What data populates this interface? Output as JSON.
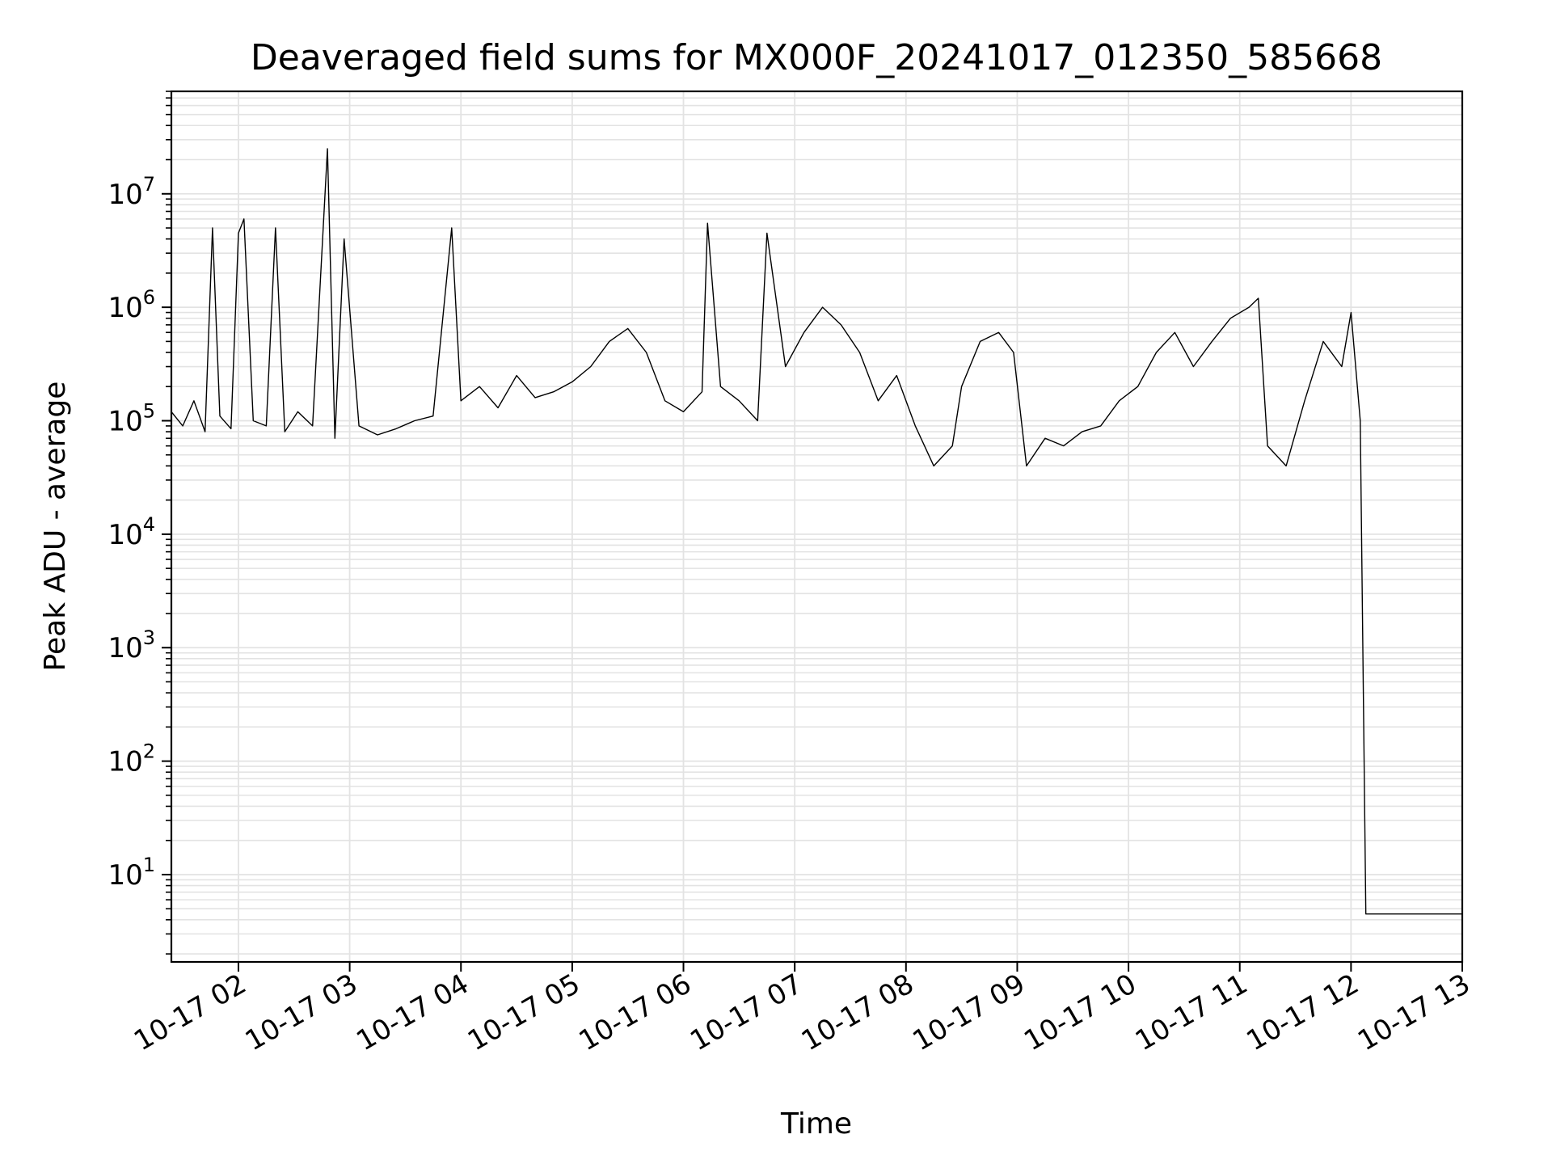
{
  "chart_data": {
    "type": "line",
    "title": "Deaveraged field sums for MX000F_20241017_012350_585668",
    "xlabel": "Time",
    "ylabel": "Peak ADU - average",
    "y_scale": "log",
    "ylim": [
      1.7,
      80000000
    ],
    "xlim": [
      "2024-10-17 01:23:50",
      "2024-10-17 13:00:00"
    ],
    "x_ticks": [
      "10-17 02",
      "10-17 03",
      "10-17 04",
      "10-17 05",
      "10-17 06",
      "10-17 07",
      "10-17 08",
      "10-17 09",
      "10-17 10",
      "10-17 11",
      "10-17 12",
      "10-17 13"
    ],
    "y_ticks": [
      {
        "base": "10",
        "exp": "1"
      },
      {
        "base": "10",
        "exp": "2"
      },
      {
        "base": "10",
        "exp": "3"
      },
      {
        "base": "10",
        "exp": "4"
      },
      {
        "base": "10",
        "exp": "5"
      },
      {
        "base": "10",
        "exp": "6"
      },
      {
        "base": "10",
        "exp": "7"
      }
    ],
    "grid": true,
    "line_color": "#000000",
    "grid_color": "#e3e3e3",
    "series": [
      {
        "name": "",
        "points": [
          [
            "2024-10-17 01:23:50",
            120000
          ],
          [
            "2024-10-17 01:30:00",
            90000
          ],
          [
            "2024-10-17 01:36:00",
            150000
          ],
          [
            "2024-10-17 01:42:00",
            80000
          ],
          [
            "2024-10-17 01:46:00",
            5000000
          ],
          [
            "2024-10-17 01:50:00",
            110000
          ],
          [
            "2024-10-17 01:56:00",
            85000
          ],
          [
            "2024-10-17 02:00:00",
            4500000
          ],
          [
            "2024-10-17 02:03:00",
            6000000
          ],
          [
            "2024-10-17 02:08:00",
            100000
          ],
          [
            "2024-10-17 02:15:00",
            90000
          ],
          [
            "2024-10-17 02:20:00",
            5000000
          ],
          [
            "2024-10-17 02:25:00",
            80000
          ],
          [
            "2024-10-17 02:32:00",
            120000
          ],
          [
            "2024-10-17 02:40:00",
            90000
          ],
          [
            "2024-10-17 02:48:00",
            25000000
          ],
          [
            "2024-10-17 02:52:00",
            70000
          ],
          [
            "2024-10-17 02:57:00",
            4000000
          ],
          [
            "2024-10-17 03:05:00",
            90000
          ],
          [
            "2024-10-17 03:15:00",
            75000
          ],
          [
            "2024-10-17 03:25:00",
            85000
          ],
          [
            "2024-10-17 03:35:00",
            100000
          ],
          [
            "2024-10-17 03:45:00",
            110000
          ],
          [
            "2024-10-17 03:55:00",
            5000000
          ],
          [
            "2024-10-17 04:00:00",
            150000
          ],
          [
            "2024-10-17 04:10:00",
            200000
          ],
          [
            "2024-10-17 04:20:00",
            130000
          ],
          [
            "2024-10-17 04:30:00",
            250000
          ],
          [
            "2024-10-17 04:40:00",
            160000
          ],
          [
            "2024-10-17 04:50:00",
            180000
          ],
          [
            "2024-10-17 05:00:00",
            220000
          ],
          [
            "2024-10-17 05:10:00",
            300000
          ],
          [
            "2024-10-17 05:20:00",
            500000
          ],
          [
            "2024-10-17 05:30:00",
            650000
          ],
          [
            "2024-10-17 05:40:00",
            400000
          ],
          [
            "2024-10-17 05:50:00",
            150000
          ],
          [
            "2024-10-17 06:00:00",
            120000
          ],
          [
            "2024-10-17 06:10:00",
            180000
          ],
          [
            "2024-10-17 06:13:00",
            5500000
          ],
          [
            "2024-10-17 06:20:00",
            200000
          ],
          [
            "2024-10-17 06:30:00",
            150000
          ],
          [
            "2024-10-17 06:40:00",
            100000
          ],
          [
            "2024-10-17 06:45:00",
            4500000
          ],
          [
            "2024-10-17 06:55:00",
            300000
          ],
          [
            "2024-10-17 07:05:00",
            600000
          ],
          [
            "2024-10-17 07:15:00",
            1000000
          ],
          [
            "2024-10-17 07:25:00",
            700000
          ],
          [
            "2024-10-17 07:35:00",
            400000
          ],
          [
            "2024-10-17 07:45:00",
            150000
          ],
          [
            "2024-10-17 07:55:00",
            250000
          ],
          [
            "2024-10-17 08:05:00",
            90000
          ],
          [
            "2024-10-17 08:15:00",
            40000
          ],
          [
            "2024-10-17 08:25:00",
            60000
          ],
          [
            "2024-10-17 08:30:00",
            200000
          ],
          [
            "2024-10-17 08:40:00",
            500000
          ],
          [
            "2024-10-17 08:50:00",
            600000
          ],
          [
            "2024-10-17 08:58:00",
            400000
          ],
          [
            "2024-10-17 09:05:00",
            40000
          ],
          [
            "2024-10-17 09:15:00",
            70000
          ],
          [
            "2024-10-17 09:25:00",
            60000
          ],
          [
            "2024-10-17 09:35:00",
            80000
          ],
          [
            "2024-10-17 09:45:00",
            90000
          ],
          [
            "2024-10-17 09:55:00",
            150000
          ],
          [
            "2024-10-17 10:05:00",
            200000
          ],
          [
            "2024-10-17 10:15:00",
            400000
          ],
          [
            "2024-10-17 10:25:00",
            600000
          ],
          [
            "2024-10-17 10:35:00",
            300000
          ],
          [
            "2024-10-17 10:45:00",
            500000
          ],
          [
            "2024-10-17 10:55:00",
            800000
          ],
          [
            "2024-10-17 11:05:00",
            1000000
          ],
          [
            "2024-10-17 11:10:00",
            1200000
          ],
          [
            "2024-10-17 11:15:00",
            60000
          ],
          [
            "2024-10-17 11:25:00",
            40000
          ],
          [
            "2024-10-17 11:35:00",
            150000
          ],
          [
            "2024-10-17 11:45:00",
            500000
          ],
          [
            "2024-10-17 11:55:00",
            300000
          ],
          [
            "2024-10-17 12:00:00",
            900000
          ],
          [
            "2024-10-17 12:05:00",
            100000
          ],
          [
            "2024-10-17 12:08:00",
            4.5
          ],
          [
            "2024-10-17 13:00:00",
            4.5
          ]
        ]
      }
    ]
  }
}
